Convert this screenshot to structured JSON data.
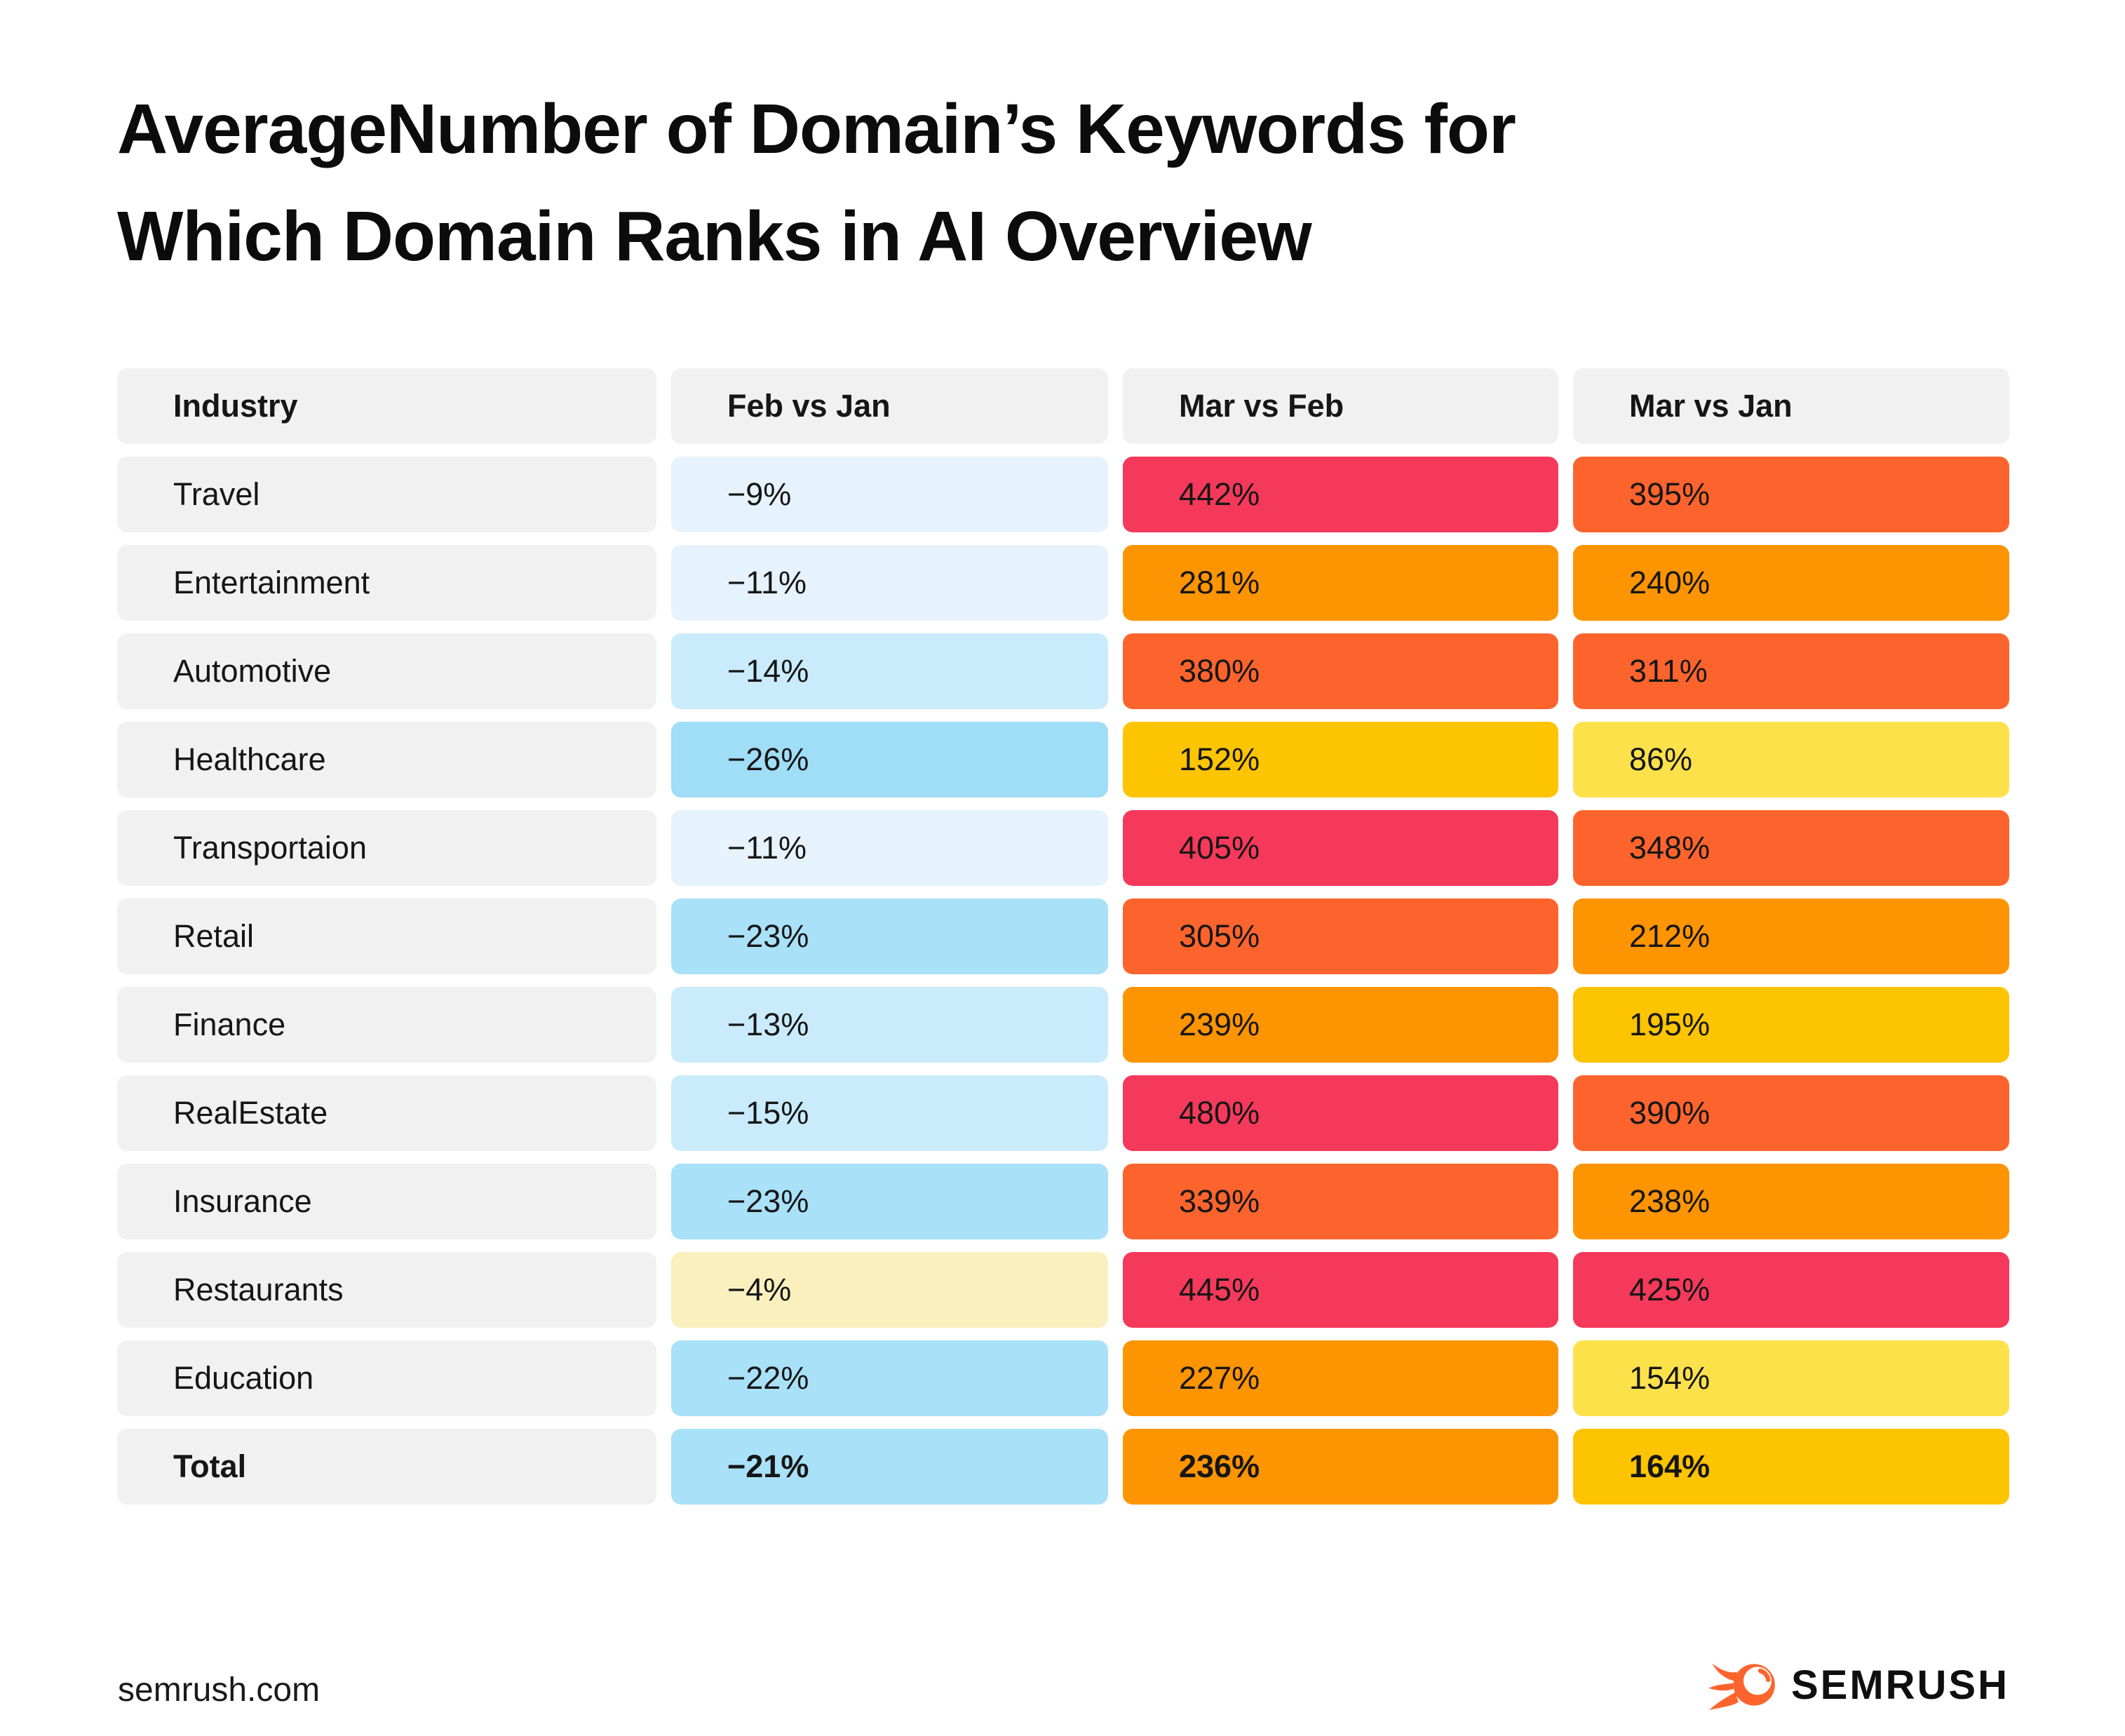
{
  "title": "AverageNumber of Domain’s Keywords for Which Domain Ranks in AI Overview",
  "title_lines": [
    "AverageNumber of Domain’s Keywords for",
    "Which Domain Ranks in AI Overview"
  ],
  "footer": {
    "site": "semrush.com",
    "logo_text": "SEMRUSH",
    "logo_icon": "semrush-flame-icon"
  },
  "palette": {
    "crimson": "#F5395B",
    "orange_red": "#FD642D",
    "orange": "#FD9402",
    "golden_yellow": "#FDC402",
    "light_yellow": "#FDE14B",
    "pale_yellow": "#FAF0BE",
    "pale_blue": "#E7F3FC",
    "light_blue": "#C9EBFB",
    "medium_blue": "#A9E1F8",
    "dark_blue": "#A0DDF6",
    "cell_gray": "#F1F1F1"
  },
  "chart_data": {
    "type": "table",
    "title": "AverageNumber of Domain’s Keywords for Which Domain Ranks in AI Overview",
    "columns": [
      "Industry",
      "Feb vs Jan",
      "Mar vs Feb",
      "Mar vs Jan"
    ],
    "rows": [
      {
        "label": "Travel",
        "bold": false,
        "values": [
          {
            "text": "−9%",
            "value": -9,
            "bg": "#E7F3FC"
          },
          {
            "text": "442%",
            "value": 442,
            "bg": "#F5395B"
          },
          {
            "text": "395%",
            "value": 395,
            "bg": "#FD642D"
          }
        ]
      },
      {
        "label": "Entertainment",
        "bold": false,
        "values": [
          {
            "text": "−11%",
            "value": -11,
            "bg": "#E7F3FC"
          },
          {
            "text": "281%",
            "value": 281,
            "bg": "#FD9402"
          },
          {
            "text": "240%",
            "value": 240,
            "bg": "#FD9402"
          }
        ]
      },
      {
        "label": "Automotive",
        "bold": false,
        "values": [
          {
            "text": "−14%",
            "value": -14,
            "bg": "#C9EBFB"
          },
          {
            "text": "380%",
            "value": 380,
            "bg": "#FD642D"
          },
          {
            "text": "311%",
            "value": 311,
            "bg": "#FD642D"
          }
        ]
      },
      {
        "label": "Healthcare",
        "bold": false,
        "values": [
          {
            "text": "−26%",
            "value": -26,
            "bg": "#A0DDF6"
          },
          {
            "text": "152%",
            "value": 152,
            "bg": "#FDC402"
          },
          {
            "text": "86%",
            "value": 86,
            "bg": "#FDE14B"
          }
        ]
      },
      {
        "label": "Transportaion",
        "bold": false,
        "values": [
          {
            "text": "−11%",
            "value": -11,
            "bg": "#E7F3FC"
          },
          {
            "text": "405%",
            "value": 405,
            "bg": "#F5395B"
          },
          {
            "text": "348%",
            "value": 348,
            "bg": "#FD642D"
          }
        ]
      },
      {
        "label": "Retail",
        "bold": false,
        "values": [
          {
            "text": "−23%",
            "value": -23,
            "bg": "#A9E1F8"
          },
          {
            "text": "305%",
            "value": 305,
            "bg": "#FD642D"
          },
          {
            "text": "212%",
            "value": 212,
            "bg": "#FD9402"
          }
        ]
      },
      {
        "label": "Finance",
        "bold": false,
        "values": [
          {
            "text": "−13%",
            "value": -13,
            "bg": "#C9EBFB"
          },
          {
            "text": "239%",
            "value": 239,
            "bg": "#FD9402"
          },
          {
            "text": "195%",
            "value": 195,
            "bg": "#FDC402"
          }
        ]
      },
      {
        "label": "RealEstate",
        "bold": false,
        "values": [
          {
            "text": "−15%",
            "value": -15,
            "bg": "#C9EBFB"
          },
          {
            "text": "480%",
            "value": 480,
            "bg": "#F5395B"
          },
          {
            "text": "390%",
            "value": 390,
            "bg": "#FD642D"
          }
        ]
      },
      {
        "label": "Insurance",
        "bold": false,
        "values": [
          {
            "text": "−23%",
            "value": -23,
            "bg": "#A9E1F8"
          },
          {
            "text": "339%",
            "value": 339,
            "bg": "#FD642D"
          },
          {
            "text": "238%",
            "value": 238,
            "bg": "#FD9402"
          }
        ]
      },
      {
        "label": "Restaurants",
        "bold": false,
        "values": [
          {
            "text": "−4%",
            "value": -4,
            "bg": "#FAF0BE"
          },
          {
            "text": "445%",
            "value": 445,
            "bg": "#F5395B"
          },
          {
            "text": "425%",
            "value": 425,
            "bg": "#F5395B"
          }
        ]
      },
      {
        "label": "Education",
        "bold": false,
        "values": [
          {
            "text": "−22%",
            "value": -22,
            "bg": "#A9E1F8"
          },
          {
            "text": "227%",
            "value": 227,
            "bg": "#FD9402"
          },
          {
            "text": "154%",
            "value": 154,
            "bg": "#FDE14B"
          }
        ]
      },
      {
        "label": "Total",
        "bold": true,
        "values": [
          {
            "text": "−21%",
            "value": -21,
            "bg": "#A9E1F8"
          },
          {
            "text": "236%",
            "value": 236,
            "bg": "#FD9402"
          },
          {
            "text": "164%",
            "value": 164,
            "bg": "#FDC402"
          }
        ]
      }
    ]
  }
}
